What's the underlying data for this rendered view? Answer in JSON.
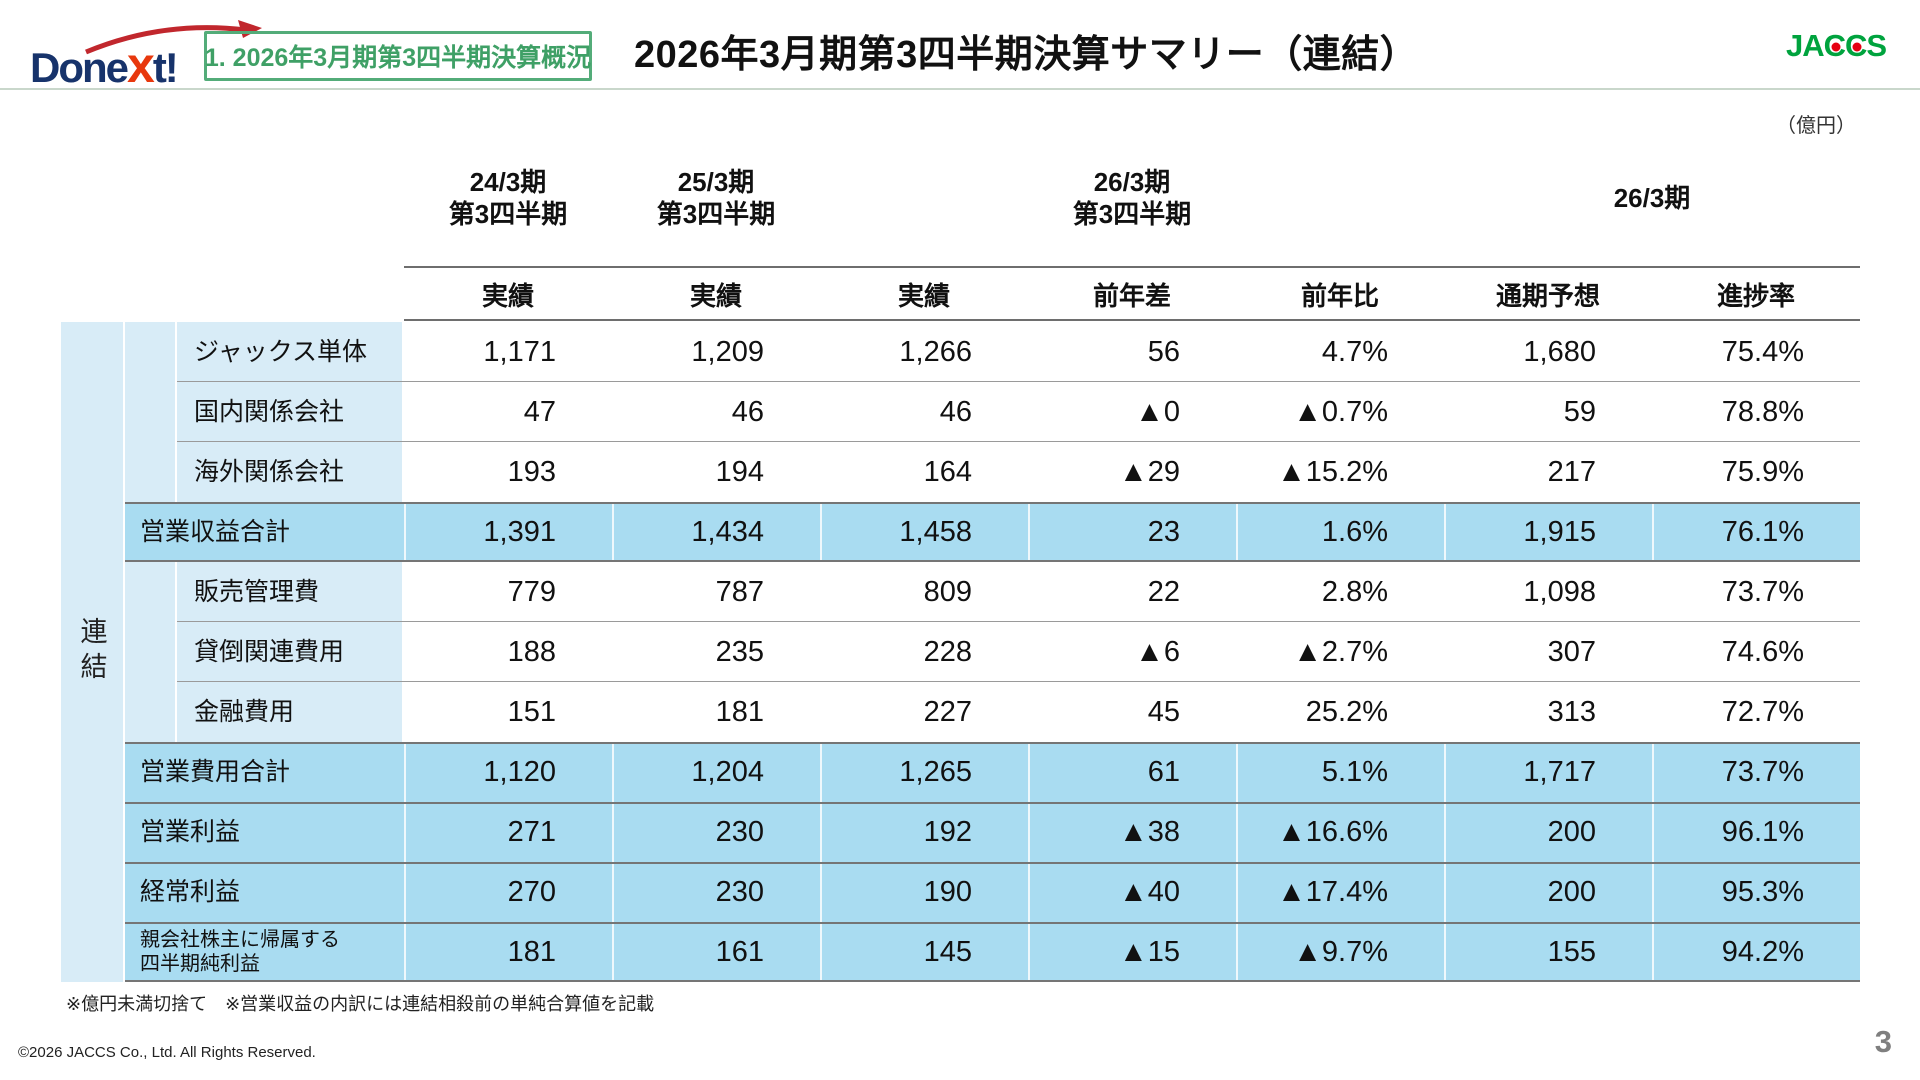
{
  "header": {
    "logo": {
      "pre": "Done",
      "accent": "x",
      "post": "t!"
    },
    "section_label": "1. 2026年3月期第3四半期決算概況",
    "title": "2026年3月期第3四半期決算サマリー（連結）",
    "brand": "JACCS"
  },
  "unit_note": "（億円）",
  "table": {
    "group_label": "連結",
    "period_headers": [
      {
        "text": "24/3期\n第3四半期"
      },
      {
        "text": "25/3期\n第3四半期"
      },
      {
        "text": "26/3期\n第3四半期"
      },
      {
        "text": "26/3期"
      }
    ],
    "col_headers": [
      "実績",
      "実績",
      "実績",
      "前年差",
      "前年比",
      "通期予想",
      "進捗率"
    ],
    "rows": [
      {
        "label": "ジャックス単体",
        "type": "sub",
        "values": [
          "1,171",
          "1,209",
          "1,266",
          "56",
          "4.7%",
          "1,680",
          "75.4%"
        ]
      },
      {
        "label": "国内関係会社",
        "type": "sub",
        "values": [
          "47",
          "46",
          "46",
          "▲0",
          "▲0.7%",
          "59",
          "78.8%"
        ]
      },
      {
        "label": "海外関係会社",
        "type": "sub",
        "values": [
          "193",
          "194",
          "164",
          "▲29",
          "▲15.2%",
          "217",
          "75.9%"
        ]
      },
      {
        "label": "営業収益合計",
        "type": "total",
        "values": [
          "1,391",
          "1,434",
          "1,458",
          "23",
          "1.6%",
          "1,915",
          "76.1%"
        ]
      },
      {
        "label": "販売管理費",
        "type": "sub",
        "values": [
          "779",
          "787",
          "809",
          "22",
          "2.8%",
          "1,098",
          "73.7%"
        ]
      },
      {
        "label": "貸倒関連費用",
        "type": "sub",
        "values": [
          "188",
          "235",
          "228",
          "▲6",
          "▲2.7%",
          "307",
          "74.6%"
        ]
      },
      {
        "label": "金融費用",
        "type": "sub",
        "values": [
          "151",
          "181",
          "227",
          "45",
          "25.2%",
          "313",
          "72.7%"
        ]
      },
      {
        "label": "営業費用合計",
        "type": "total",
        "values": [
          "1,120",
          "1,204",
          "1,265",
          "61",
          "5.1%",
          "1,717",
          "73.7%"
        ]
      },
      {
        "label": "営業利益",
        "type": "total",
        "values": [
          "271",
          "230",
          "192",
          "▲38",
          "▲16.6%",
          "200",
          "96.1%"
        ]
      },
      {
        "label": "経常利益",
        "type": "total",
        "values": [
          "270",
          "230",
          "190",
          "▲40",
          "▲17.4%",
          "200",
          "95.3%"
        ]
      },
      {
        "label": "親会社株主に帰属する\n四半期純利益",
        "type": "total",
        "small_label": true,
        "values": [
          "181",
          "161",
          "145",
          "▲15",
          "▲9.7%",
          "155",
          "94.2%"
        ]
      }
    ]
  },
  "footnote": "※億円未満切捨て　※営業収益の内訳には連結相殺前の単純合算値を記載",
  "copyright": "©2026 JACCS Co., Ltd. All Rights Reserved.",
  "page_number": "3"
}
